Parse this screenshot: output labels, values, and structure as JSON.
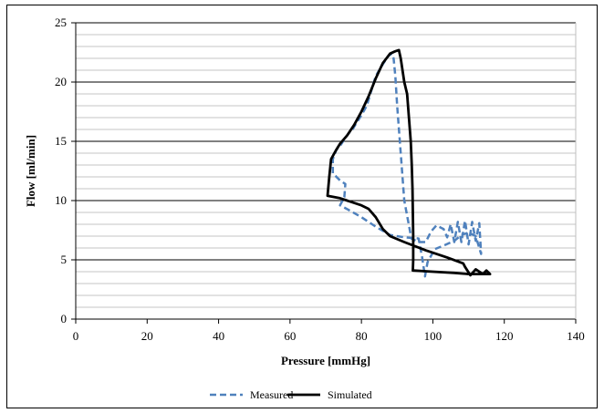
{
  "chart_data": {
    "type": "line",
    "title": "",
    "xlabel": "Pressure [mmHg]",
    "ylabel": "Flow [ml/min]",
    "xlim": [
      0,
      140
    ],
    "ylim": [
      0,
      25
    ],
    "x_ticks": [
      0,
      20,
      40,
      60,
      80,
      100,
      120,
      140
    ],
    "y_ticks": [
      0,
      5,
      10,
      15,
      20,
      25
    ],
    "grid": "horizontal major and minor",
    "legend_position": "bottom",
    "series": [
      {
        "name": "Measured",
        "style": "dashed",
        "color": "#4f81bd",
        "points": [
          [
            88.5,
            22.4
          ],
          [
            87.5,
            22.2
          ],
          [
            86.0,
            21.5
          ],
          [
            84.0,
            20.5
          ],
          [
            82.5,
            19.0
          ],
          [
            81.5,
            18.0
          ],
          [
            80.0,
            17.2
          ],
          [
            78.5,
            16.5
          ],
          [
            77.5,
            16.0
          ],
          [
            76.5,
            15.7
          ],
          [
            75.5,
            15.3
          ],
          [
            74.0,
            14.6
          ],
          [
            73.0,
            14.3
          ],
          [
            72.0,
            13.5
          ],
          [
            72.0,
            12.3
          ],
          [
            74.0,
            11.7
          ],
          [
            75.5,
            11.4
          ],
          [
            75.2,
            10.3
          ],
          [
            74.0,
            9.6
          ],
          [
            76.5,
            9.2
          ],
          [
            80.0,
            8.6
          ],
          [
            84.0,
            7.8
          ],
          [
            88.0,
            7.1
          ],
          [
            92.0,
            6.9
          ],
          [
            96.0,
            6.8
          ],
          [
            97.0,
            5.2
          ],
          [
            97.8,
            3.6
          ],
          [
            98.5,
            4.8
          ],
          [
            100.5,
            5.9
          ],
          [
            103.0,
            6.2
          ],
          [
            106.0,
            6.6
          ],
          [
            108.0,
            7.1
          ],
          [
            110.0,
            7.3
          ],
          [
            112.0,
            7.0
          ],
          [
            113.5,
            5.5
          ],
          [
            113.0,
            8.1
          ],
          [
            112.0,
            6.6
          ],
          [
            111.0,
            8.2
          ],
          [
            110.0,
            6.3
          ],
          [
            109.0,
            8.3
          ],
          [
            108.0,
            6.5
          ],
          [
            107.0,
            8.2
          ],
          [
            106.0,
            6.5
          ],
          [
            105.0,
            8.0
          ],
          [
            104.0,
            6.9
          ],
          [
            103.0,
            7.6
          ],
          [
            101.0,
            7.9
          ],
          [
            99.5,
            7.4
          ],
          [
            98.0,
            6.5
          ],
          [
            96.0,
            6.5
          ],
          [
            94.0,
            6.8
          ],
          [
            92.0,
            10.0
          ],
          [
            91.0,
            14.0
          ],
          [
            90.0,
            18.0
          ],
          [
            89.5,
            20.5
          ],
          [
            89.0,
            22.0
          ],
          [
            88.5,
            22.4
          ]
        ]
      },
      {
        "name": "Simulated",
        "style": "solid",
        "color": "#000000",
        "points": [
          [
            89.5,
            22.6
          ],
          [
            90.5,
            22.7
          ],
          [
            91.0,
            22.0
          ],
          [
            92.0,
            20.0
          ],
          [
            92.8,
            19.0
          ],
          [
            93.3,
            17.0
          ],
          [
            93.8,
            15.0
          ],
          [
            94.1,
            13.0
          ],
          [
            94.3,
            11.0
          ],
          [
            94.4,
            9.0
          ],
          [
            94.5,
            7.0
          ],
          [
            94.5,
            5.0
          ],
          [
            94.4,
            4.1
          ],
          [
            100.0,
            4.0
          ],
          [
            106.0,
            3.9
          ],
          [
            110.0,
            3.8
          ],
          [
            116.0,
            3.8
          ],
          [
            115.0,
            4.1
          ],
          [
            114.0,
            3.8
          ],
          [
            112.0,
            4.2
          ],
          [
            110.5,
            3.7
          ],
          [
            109.0,
            4.4
          ],
          [
            108.5,
            4.7
          ],
          [
            104.0,
            5.2
          ],
          [
            98.0,
            5.8
          ],
          [
            92.0,
            6.5
          ],
          [
            88.0,
            7.0
          ],
          [
            86.0,
            7.6
          ],
          [
            84.0,
            8.6
          ],
          [
            82.0,
            9.3
          ],
          [
            80.0,
            9.6
          ],
          [
            76.0,
            10.0
          ],
          [
            74.0,
            10.2
          ],
          [
            70.5,
            10.4
          ],
          [
            71.0,
            12.0
          ],
          [
            71.5,
            13.5
          ],
          [
            73.0,
            14.3
          ],
          [
            74.0,
            14.8
          ],
          [
            76.0,
            15.5
          ],
          [
            78.0,
            16.4
          ],
          [
            80.0,
            17.5
          ],
          [
            82.0,
            18.8
          ],
          [
            84.0,
            20.3
          ],
          [
            86.0,
            21.6
          ],
          [
            88.0,
            22.4
          ],
          [
            89.5,
            22.6
          ]
        ]
      }
    ]
  }
}
